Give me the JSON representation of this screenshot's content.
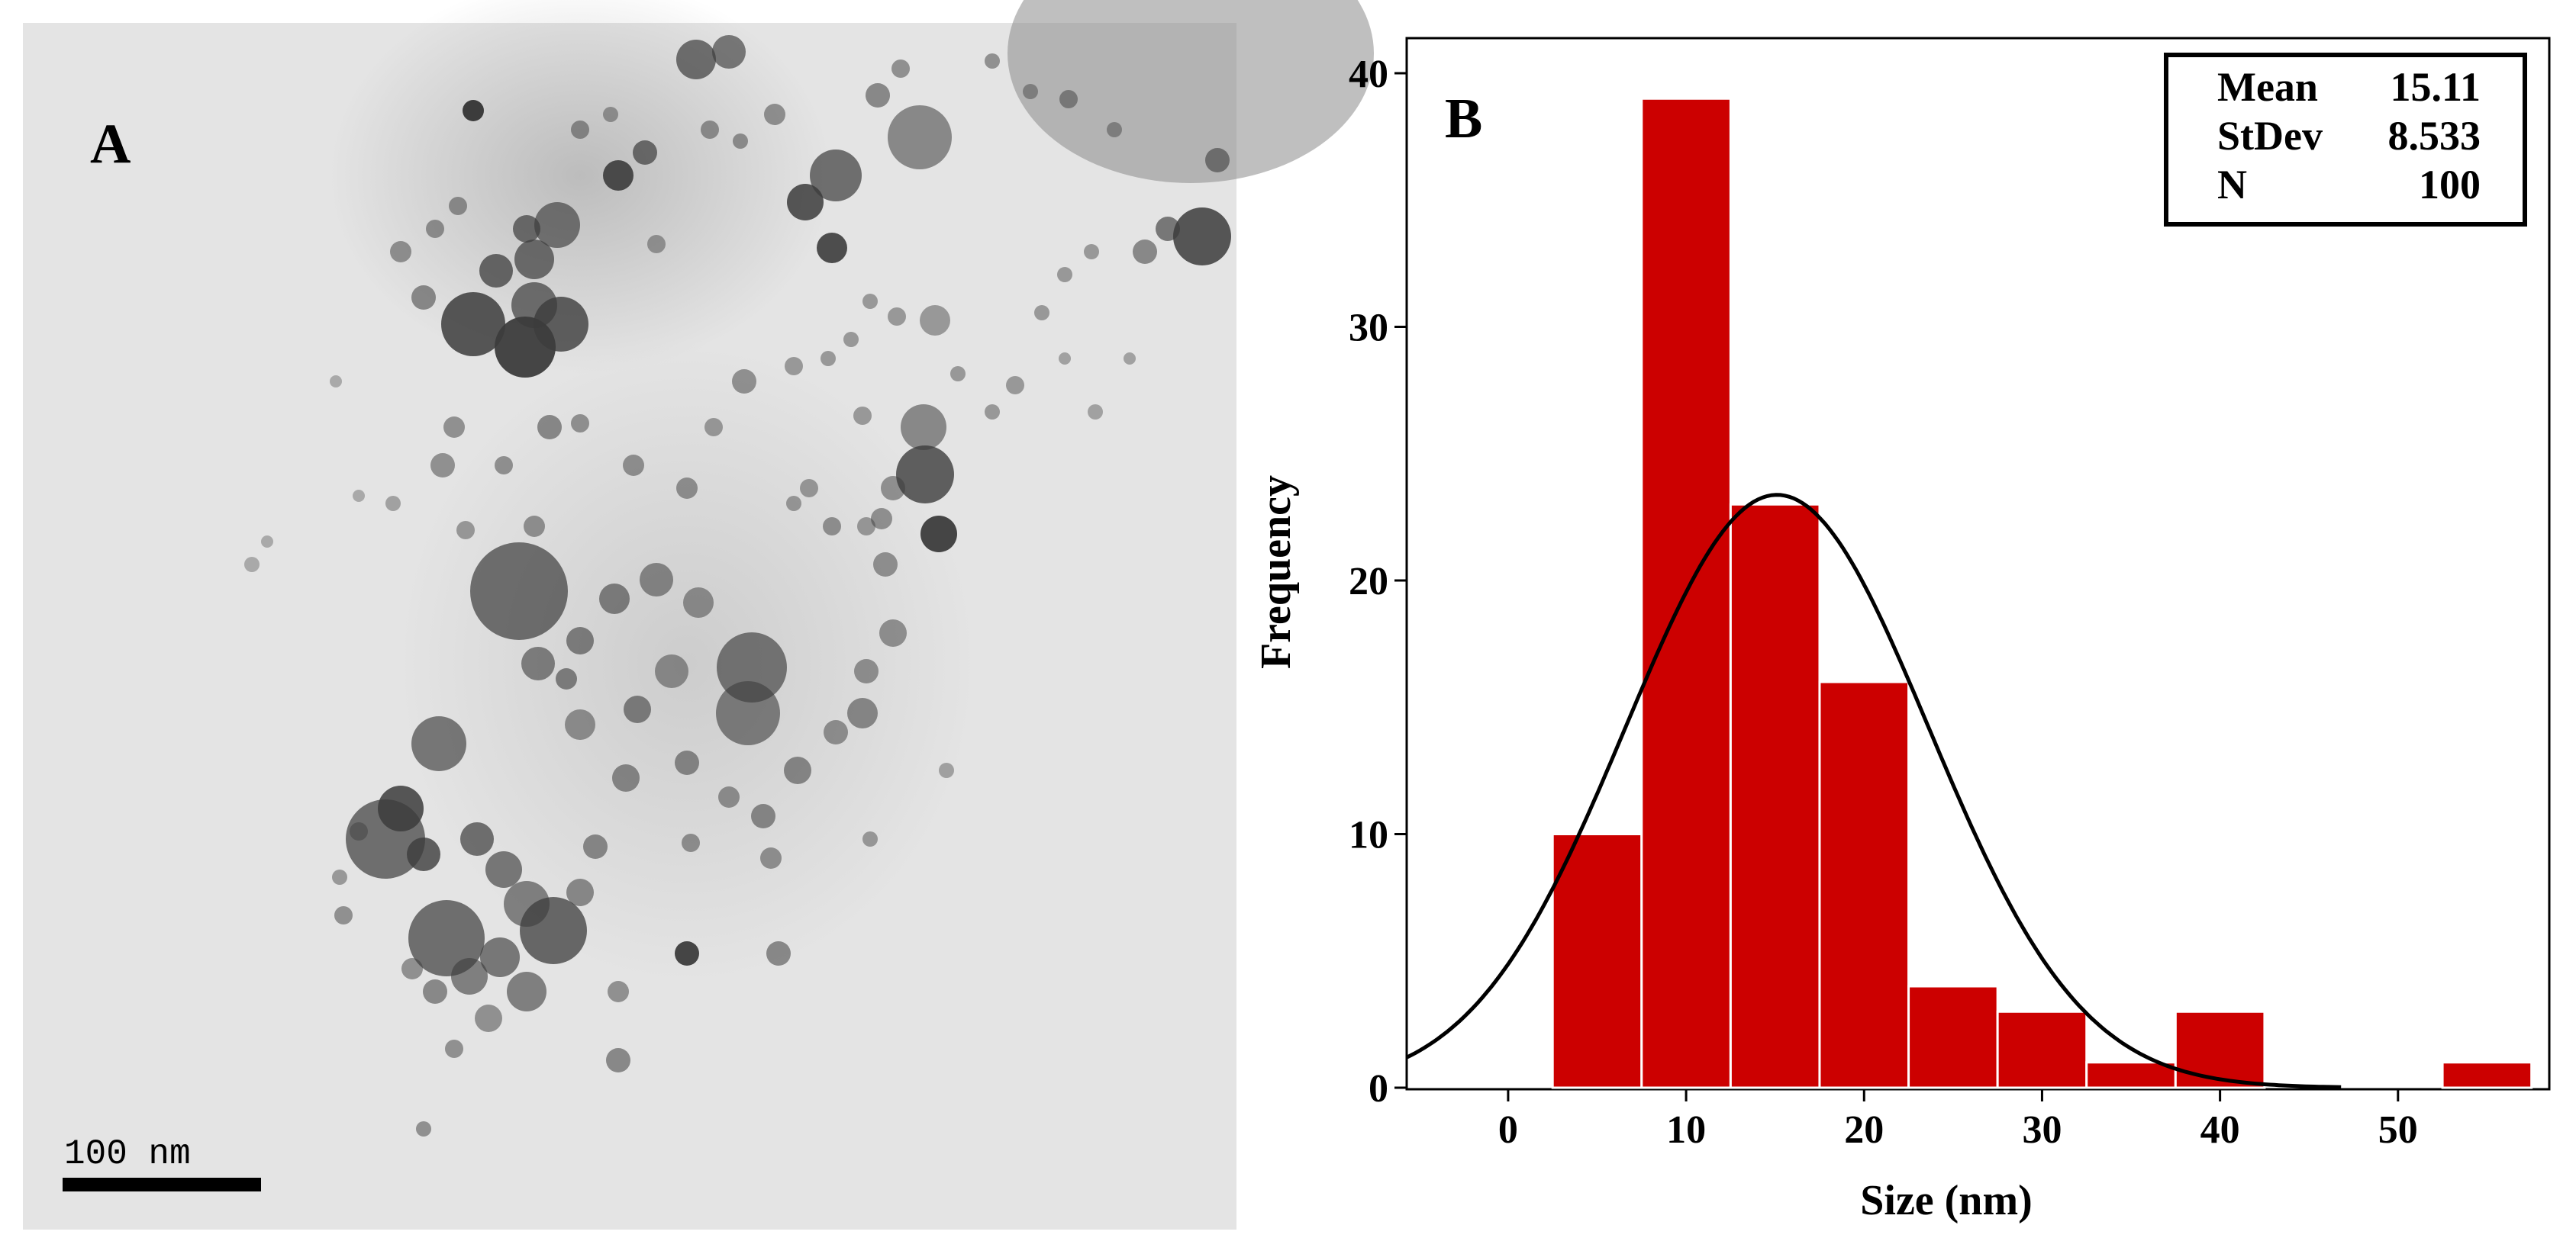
{
  "panel_a": {
    "label": "A",
    "scale_bar_label": "100 nm"
  },
  "panel_b": {
    "label": "B"
  },
  "stats": {
    "mean_label": "Mean",
    "mean_value": "15.11",
    "stdev_label": "StDev",
    "stdev_value": "8.533",
    "n_label": "N",
    "n_value": "100"
  },
  "colors": {
    "bar_fill": "#cc0000",
    "bar_edge": "#ffffff",
    "curve": "#000000",
    "tem_background": "#e4e4e4",
    "particle": "#3c3c3c"
  },
  "chart_data": {
    "type": "bar",
    "subtype": "histogram with fitted normal curve",
    "title": "",
    "xlabel": "Size (nm)",
    "ylabel": "Frequency",
    "xlim": [
      -5.7,
      58.5
    ],
    "ylim": [
      0,
      40
    ],
    "xticks": [
      0,
      10,
      20,
      30,
      40,
      50
    ],
    "yticks": [
      0,
      10,
      20,
      30,
      40
    ],
    "bins": [
      {
        "x0": 2.5,
        "x1": 7.5,
        "value": 10
      },
      {
        "x0": 7.5,
        "x1": 12.5,
        "value": 39
      },
      {
        "x0": 12.5,
        "x1": 17.5,
        "value": 23
      },
      {
        "x0": 17.5,
        "x1": 22.5,
        "value": 16
      },
      {
        "x0": 22.5,
        "x1": 27.5,
        "value": 4
      },
      {
        "x0": 27.5,
        "x1": 32.5,
        "value": 3
      },
      {
        "x0": 32.5,
        "x1": 37.5,
        "value": 1
      },
      {
        "x0": 37.5,
        "x1": 42.5,
        "value": 3
      },
      {
        "x0": 42.5,
        "x1": 47.5,
        "value": 0
      },
      {
        "x0": 47.5,
        "x1": 52.5,
        "value": 0
      },
      {
        "x0": 52.5,
        "x1": 57.5,
        "value": 1
      }
    ],
    "fit": {
      "distribution": "normal",
      "mean": 15.11,
      "stdev": 8.533,
      "n": 100,
      "bin_width": 5
    },
    "legend": "stats box top-right",
    "grid": false
  }
}
